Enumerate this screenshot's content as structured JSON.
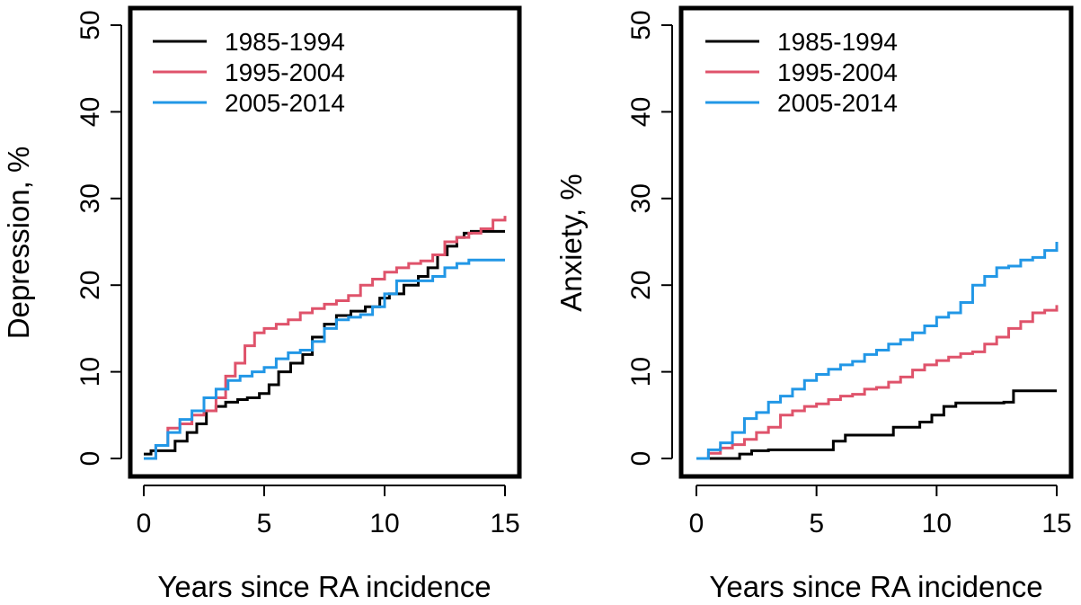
{
  "colors": {
    "1985-1994": "#000000",
    "1995-2004": "#DF536B",
    "2005-2014": "#2297E6"
  },
  "chart_data": [
    {
      "type": "line",
      "title": "",
      "xlabel": "Years since RA incidence",
      "ylabel": "Depression, %",
      "xlim": [
        0,
        15
      ],
      "ylim": [
        0,
        50
      ],
      "xticks": [
        0,
        5,
        10,
        15
      ],
      "yticks": [
        0,
        10,
        20,
        30,
        40,
        50
      ],
      "grid": false,
      "legend": "top-left",
      "series": [
        {
          "name": "1985-1994",
          "x": [
            0,
            0.3,
            1.3,
            1.8,
            2.2,
            2.6,
            3.0,
            3.4,
            3.9,
            4.3,
            4.8,
            5.2,
            5.6,
            6.1,
            6.6,
            7.0,
            7.5,
            8.0,
            8.6,
            9.2,
            9.8,
            10.2,
            10.8,
            11.4,
            11.8,
            12.2,
            12.6,
            13.0,
            13.3,
            13.6,
            14.0,
            15.0
          ],
          "y": [
            0.5,
            0.9,
            2.0,
            3.0,
            4.0,
            5.5,
            6.0,
            6.5,
            6.8,
            7.0,
            7.5,
            8.5,
            10.0,
            11.0,
            12.0,
            14.0,
            15.5,
            16.5,
            17.0,
            17.5,
            18.5,
            19.0,
            20.0,
            21.0,
            22.0,
            23.5,
            24.5,
            25.5,
            26.0,
            26.2,
            26.2,
            26.2
          ]
        },
        {
          "name": "1995-2004",
          "x": [
            0,
            0.5,
            1.0,
            1.5,
            2.0,
            2.5,
            3.0,
            3.4,
            3.8,
            4.2,
            4.6,
            5.0,
            5.5,
            6.0,
            6.5,
            7.0,
            7.5,
            8.0,
            8.5,
            9.0,
            9.5,
            10.0,
            10.5,
            11.0,
            11.5,
            12.0,
            12.5,
            13.0,
            13.5,
            14.0,
            14.5,
            15.0
          ],
          "y": [
            0,
            1.5,
            3.5,
            4.0,
            5.0,
            5.5,
            7.0,
            9.5,
            11.0,
            13.0,
            14.5,
            15.0,
            15.5,
            16.0,
            16.8,
            17.3,
            17.8,
            18.2,
            18.8,
            20.0,
            20.7,
            21.5,
            22.0,
            22.5,
            22.8,
            23.5,
            25.0,
            25.5,
            26.0,
            26.5,
            27.5,
            28.0
          ]
        },
        {
          "name": "2005-2014",
          "x": [
            0,
            0.5,
            1.0,
            1.5,
            2.0,
            2.5,
            3.0,
            3.5,
            4.0,
            4.5,
            5.0,
            5.5,
            6.0,
            6.5,
            7.0,
            7.5,
            8.0,
            8.5,
            9.0,
            9.5,
            10.0,
            10.5,
            11.0,
            11.5,
            12.0,
            12.5,
            13.0,
            13.5,
            15.0
          ],
          "y": [
            0,
            1.5,
            3.0,
            4.5,
            5.5,
            7.0,
            8.0,
            9.0,
            9.5,
            10.0,
            10.5,
            11.5,
            12.2,
            12.5,
            13.5,
            15.0,
            16.0,
            16.3,
            16.6,
            17.5,
            19.0,
            20.5,
            20.5,
            20.5,
            21.0,
            22.0,
            22.5,
            22.9,
            22.9
          ]
        }
      ]
    },
    {
      "type": "line",
      "title": "",
      "xlabel": "Years since RA incidence",
      "ylabel": "Anxiety, %",
      "xlim": [
        0,
        15
      ],
      "ylim": [
        0,
        50
      ],
      "xticks": [
        0,
        5,
        10,
        15
      ],
      "yticks": [
        0,
        10,
        20,
        30,
        40,
        50
      ],
      "grid": false,
      "legend": "top-left",
      "series": [
        {
          "name": "1985-1994",
          "x": [
            0,
            1.8,
            2.3,
            3.0,
            4.0,
            5.0,
            5.7,
            6.2,
            6.8,
            7.5,
            8.2,
            8.8,
            9.3,
            9.8,
            10.3,
            10.8,
            11.5,
            12.0,
            12.8,
            13.2,
            14.0,
            15.0
          ],
          "y": [
            0,
            0.5,
            0.9,
            1.0,
            1.0,
            1.0,
            2.0,
            2.7,
            2.7,
            2.7,
            3.6,
            3.6,
            4.2,
            5.0,
            6.0,
            6.4,
            6.4,
            6.4,
            6.5,
            7.8,
            7.8,
            7.8
          ]
        },
        {
          "name": "1995-2004",
          "x": [
            0,
            0.5,
            1.0,
            1.5,
            2.0,
            2.5,
            3.0,
            3.5,
            4.0,
            4.5,
            5.0,
            5.5,
            6.0,
            6.5,
            7.0,
            7.5,
            8.0,
            8.5,
            9.0,
            9.5,
            10.0,
            10.5,
            11.0,
            11.5,
            12.0,
            12.5,
            13.0,
            13.5,
            14.0,
            14.5,
            15.0
          ],
          "y": [
            0,
            0.6,
            1.2,
            1.6,
            2.2,
            3.0,
            3.6,
            5.0,
            5.5,
            6.0,
            6.3,
            6.8,
            7.2,
            7.4,
            8.0,
            8.2,
            8.8,
            9.4,
            10.2,
            10.8,
            11.3,
            11.7,
            12.1,
            12.3,
            13.2,
            14.0,
            15.0,
            15.8,
            16.8,
            17.1,
            17.7
          ]
        },
        {
          "name": "2005-2014",
          "x": [
            0,
            0.5,
            1.0,
            1.5,
            2.0,
            2.5,
            3.0,
            3.5,
            4.0,
            4.5,
            5.0,
            5.5,
            6.0,
            6.5,
            7.0,
            7.5,
            8.0,
            8.5,
            9.0,
            9.5,
            10.0,
            10.5,
            11.0,
            11.5,
            12.0,
            12.5,
            13.0,
            13.5,
            14.0,
            14.5,
            15.0
          ],
          "y": [
            0,
            1.0,
            1.8,
            3.0,
            4.6,
            5.3,
            6.5,
            7.2,
            8.0,
            9.0,
            9.7,
            10.3,
            10.8,
            11.2,
            12.0,
            12.5,
            13.2,
            13.7,
            14.5,
            15.3,
            16.3,
            16.8,
            18.0,
            20.0,
            21.0,
            22.0,
            22.2,
            22.9,
            23.2,
            24.0,
            25.0
          ]
        }
      ]
    }
  ]
}
